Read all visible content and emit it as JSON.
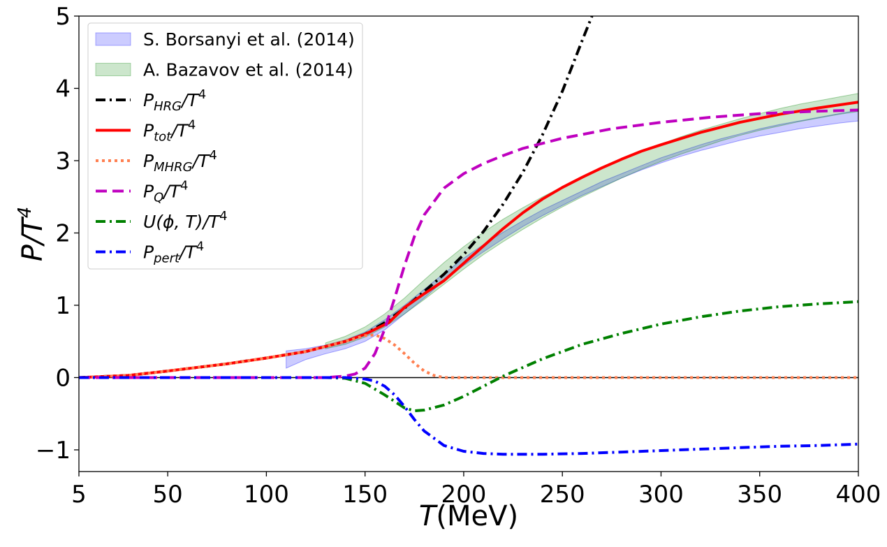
{
  "chart_data": {
    "type": "line",
    "xlabel": "T(MeV)",
    "xlabel_main": "T",
    "xlabel_unit": "(MeV)",
    "ylabel_main": "P/T",
    "ylabel_sup": "4",
    "xlim": [
      5,
      400
    ],
    "ylim": [
      -1.3,
      5
    ],
    "x_tick_values": [
      5,
      50,
      100,
      150,
      200,
      250,
      300,
      350,
      400
    ],
    "x_tick_labels": [
      "5",
      "50",
      "100",
      "150",
      "200",
      "250",
      "300",
      "350",
      "400"
    ],
    "y_tick_values": [
      -1,
      0,
      1,
      2,
      3,
      4,
      5
    ],
    "y_tick_labels": [
      "−1",
      "0",
      "1",
      "2",
      "3",
      "4",
      "5"
    ],
    "zero_line": true,
    "legend_location": "upper-left",
    "bands": [
      {
        "name": "S. Borsanyi et al. (2014)",
        "color": "#0000ff",
        "opacity": 0.2,
        "x": [
          110,
          120,
          130,
          140,
          150,
          160,
          170,
          180,
          190,
          200,
          210,
          220,
          230,
          240,
          250,
          260,
          270,
          280,
          290,
          300,
          310,
          320,
          330,
          340,
          350,
          360,
          370,
          380,
          390,
          400
        ],
        "lower": [
          0.13,
          0.25,
          0.33,
          0.4,
          0.5,
          0.66,
          0.88,
          1.1,
          1.34,
          1.55,
          1.74,
          1.92,
          2.09,
          2.24,
          2.38,
          2.52,
          2.64,
          2.76,
          2.87,
          2.97,
          3.06,
          3.14,
          3.21,
          3.28,
          3.34,
          3.39,
          3.44,
          3.48,
          3.52,
          3.55
        ],
        "upper": [
          0.37,
          0.4,
          0.45,
          0.52,
          0.63,
          0.8,
          1.0,
          1.22,
          1.44,
          1.65,
          1.84,
          2.01,
          2.17,
          2.32,
          2.45,
          2.58,
          2.71,
          2.82,
          2.93,
          3.04,
          3.13,
          3.22,
          3.3,
          3.37,
          3.44,
          3.5,
          3.55,
          3.6,
          3.65,
          3.7
        ]
      },
      {
        "name": "A. Bazavov et al. (2014)",
        "color": "#008000",
        "opacity": 0.2,
        "x": [
          130,
          140,
          150,
          160,
          170,
          180,
          190,
          200,
          210,
          220,
          230,
          240,
          250,
          260,
          270,
          280,
          290,
          300,
          310,
          320,
          330,
          340,
          350,
          360,
          370,
          380,
          390,
          400
        ],
        "lower": [
          0.4,
          0.46,
          0.56,
          0.7,
          0.88,
          1.08,
          1.29,
          1.5,
          1.7,
          1.88,
          2.05,
          2.21,
          2.36,
          2.5,
          2.63,
          2.76,
          2.88,
          2.99,
          3.09,
          3.18,
          3.27,
          3.35,
          3.42,
          3.48,
          3.54,
          3.59,
          3.64,
          3.68
        ],
        "upper": [
          0.48,
          0.57,
          0.7,
          0.88,
          1.1,
          1.35,
          1.59,
          1.81,
          2.01,
          2.19,
          2.35,
          2.5,
          2.64,
          2.78,
          2.9,
          3.02,
          3.13,
          3.23,
          3.33,
          3.42,
          3.5,
          3.58,
          3.65,
          3.72,
          3.78,
          3.83,
          3.88,
          3.93
        ]
      }
    ],
    "series": [
      {
        "name": "P_HRG/T^4",
        "legend_main": "P",
        "legend_sub": "HRG",
        "legend_tail": "/T",
        "legend_sup": "4",
        "color": "#000000",
        "dash": "14 6 3 6",
        "x": [
          5,
          30,
          50,
          80,
          100,
          120,
          140,
          150,
          160,
          170,
          180,
          190,
          200,
          210,
          220,
          230,
          240,
          250,
          260,
          265
        ],
        "y": [
          0.0,
          0.03,
          0.09,
          0.19,
          0.27,
          0.36,
          0.5,
          0.6,
          0.76,
          0.96,
          1.19,
          1.43,
          1.7,
          2.02,
          2.4,
          2.84,
          3.36,
          3.96,
          4.66,
          5.0
        ]
      },
      {
        "name": "P_tot/T^4",
        "legend_main": "P",
        "legend_sub": "tot",
        "legend_tail": "/T",
        "legend_sup": "4",
        "color": "#ff0000",
        "dash": "",
        "x": [
          5,
          30,
          50,
          80,
          100,
          120,
          140,
          150,
          162,
          170,
          180,
          190,
          200,
          210,
          220,
          230,
          240,
          250,
          260,
          270,
          280,
          290,
          300,
          320,
          340,
          360,
          380,
          400
        ],
        "y": [
          0.0,
          0.03,
          0.09,
          0.19,
          0.27,
          0.36,
          0.5,
          0.6,
          0.76,
          0.97,
          1.16,
          1.34,
          1.58,
          1.82,
          2.06,
          2.28,
          2.47,
          2.63,
          2.77,
          2.9,
          3.02,
          3.13,
          3.22,
          3.39,
          3.53,
          3.64,
          3.73,
          3.81
        ]
      },
      {
        "name": "P_MHRG/T^4",
        "legend_main": "P",
        "legend_sub": "MHRG",
        "legend_tail": "/T",
        "legend_sup": "4",
        "color": "#ff7f50",
        "dash": "4 5",
        "x": [
          5,
          30,
          50,
          80,
          100,
          120,
          140,
          150,
          155,
          160,
          165,
          170,
          175,
          180,
          185,
          190,
          200,
          250,
          300,
          350,
          400
        ],
        "y": [
          0.0,
          0.03,
          0.09,
          0.19,
          0.27,
          0.36,
          0.5,
          0.58,
          0.59,
          0.54,
          0.45,
          0.33,
          0.2,
          0.09,
          0.03,
          0.0,
          0.0,
          0.0,
          0.0,
          0.0,
          0.0
        ]
      },
      {
        "name": "P_Q/T^4",
        "legend_main": "P",
        "legend_sub": "Q",
        "legend_tail": "/T",
        "legend_sup": "4",
        "color": "#bf00bf",
        "dash": "16 8",
        "x": [
          5,
          100,
          130,
          140,
          145,
          150,
          155,
          160,
          165,
          170,
          175,
          180,
          190,
          200,
          210,
          220,
          230,
          250,
          275,
          300,
          325,
          350,
          375,
          400
        ],
        "y": [
          0.0,
          0.0,
          0.0,
          0.02,
          0.05,
          0.13,
          0.33,
          0.67,
          1.1,
          1.55,
          1.95,
          2.25,
          2.62,
          2.82,
          2.96,
          3.07,
          3.17,
          3.31,
          3.44,
          3.53,
          3.6,
          3.65,
          3.68,
          3.7
        ]
      },
      {
        "name": "U(ϕ,T)/T^4",
        "legend_main": "U(ϕ, T)",
        "legend_sub": "",
        "legend_tail": "/T",
        "legend_sup": "4",
        "color": "#008000",
        "dash": "14 6 3 6",
        "x": [
          5,
          130,
          140,
          150,
          160,
          170,
          175,
          180,
          190,
          200,
          210,
          220,
          240,
          260,
          280,
          300,
          320,
          340,
          360,
          380,
          400
        ],
        "y": [
          0.0,
          0.0,
          -0.01,
          -0.08,
          -0.24,
          -0.42,
          -0.46,
          -0.45,
          -0.38,
          -0.26,
          -0.12,
          0.02,
          0.26,
          0.46,
          0.61,
          0.74,
          0.84,
          0.92,
          0.98,
          1.02,
          1.05
        ]
      },
      {
        "name": "P_pert/T^4",
        "legend_main": "P",
        "legend_sub": "pert",
        "legend_tail": "/T",
        "legend_sup": "4",
        "color": "#0000ff",
        "dash": "14 6 3 6",
        "x": [
          5,
          140,
          150,
          155,
          160,
          165,
          170,
          175,
          180,
          190,
          200,
          210,
          220,
          240,
          260,
          280,
          300,
          320,
          340,
          360,
          380,
          400
        ],
        "y": [
          0.0,
          0.0,
          -0.02,
          -0.05,
          -0.12,
          -0.24,
          -0.4,
          -0.58,
          -0.74,
          -0.94,
          -1.02,
          -1.05,
          -1.06,
          -1.06,
          -1.05,
          -1.03,
          -1.01,
          -0.99,
          -0.97,
          -0.95,
          -0.94,
          -0.92
        ]
      }
    ]
  }
}
